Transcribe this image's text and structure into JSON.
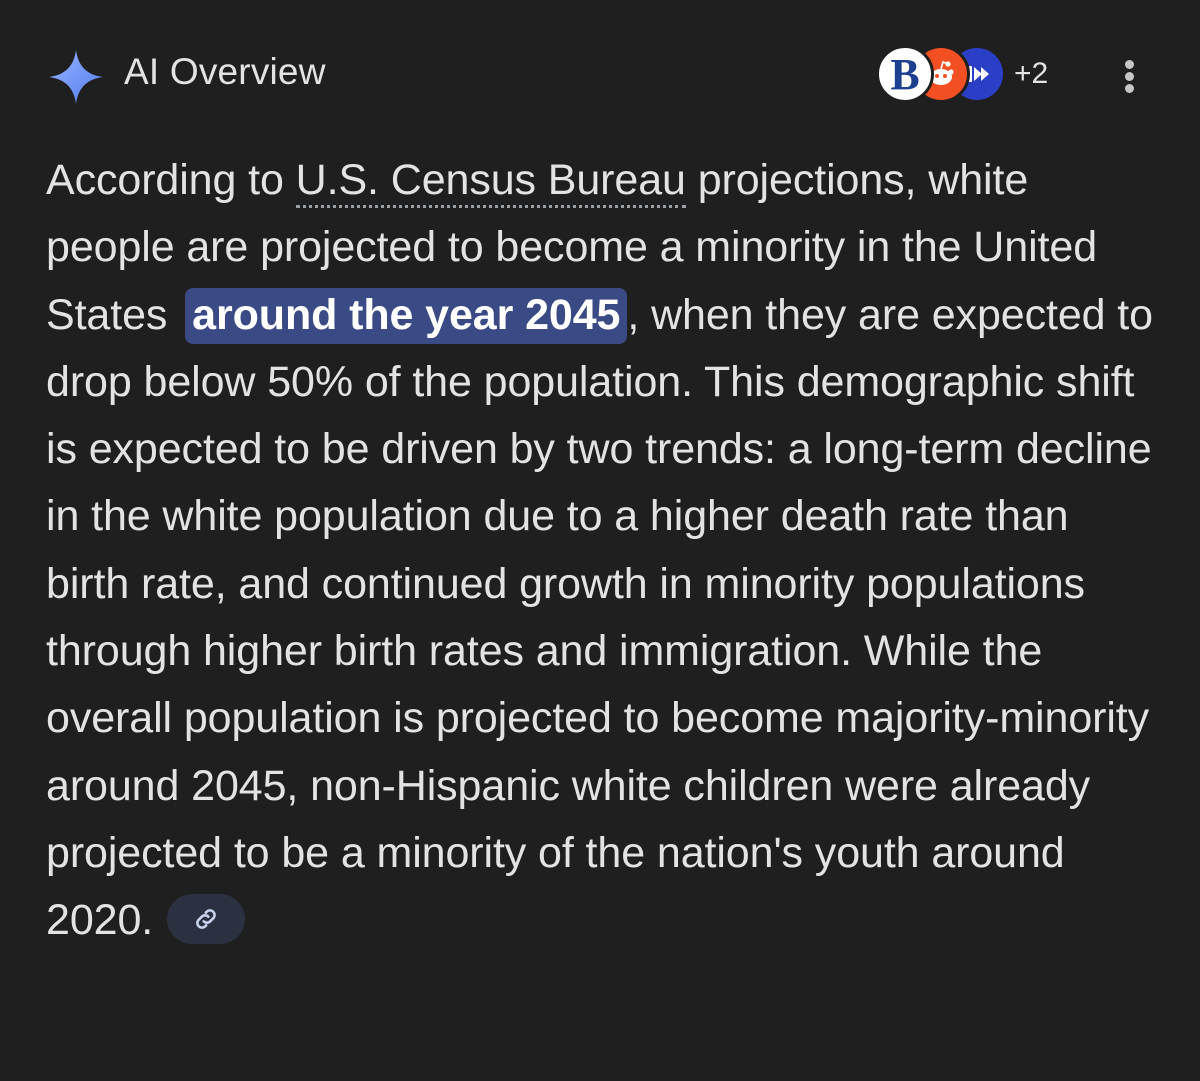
{
  "header": {
    "title": "AI Overview",
    "sparkle_icon": "sparkle-icon",
    "sources": {
      "icons": [
        "source-b-logo-icon",
        "source-reddit-icon",
        "source-pbs-icon"
      ],
      "logo_letter": "B",
      "more_count": "+2"
    },
    "menu_icon": "more-vert-icon"
  },
  "overview": {
    "intro": "According to ",
    "source_link": "U.S. Census Bureau",
    "after_link": " projections, white people are projected to become a minority in the United States",
    "highlight": "around the year 2045",
    "body": ", when they are expected to drop below 50% of the population. This demographic shift is expected to be driven by two trends: a long-term decline in the white population due to a higher death rate than birth rate, and continued growth in minority populations through higher birth rates and immigration. While the overall population is projected to become majority-minority around 2045, non-Hispanic white children were already projected to be a minority of the nation's youth around 2020.",
    "link_chip_icon": "link-icon"
  },
  "colors": {
    "background": "#1f1f1f",
    "text": "#e3e3e3",
    "highlight_bg": "#3a4a84",
    "chip_bg": "#2b3140",
    "sparkle": "#6d8cf5"
  }
}
